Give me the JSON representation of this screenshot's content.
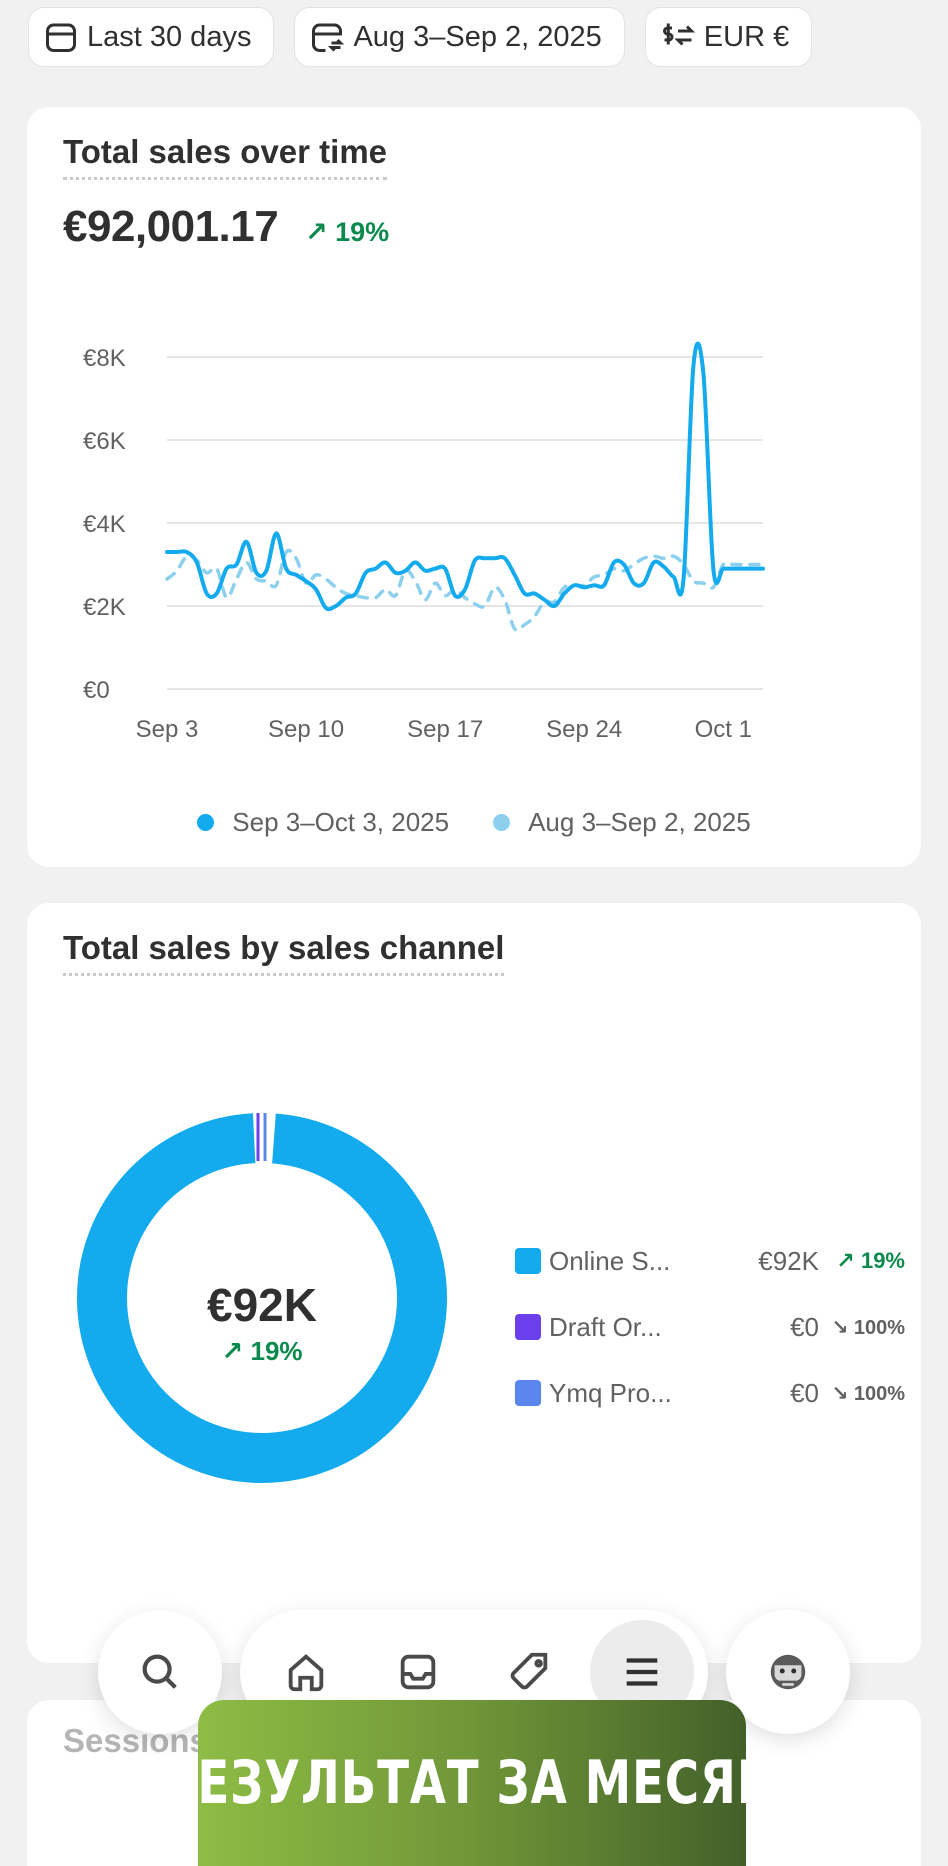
{
  "filters": [
    {
      "label": "Last 30 days",
      "icon": "calendar-icon"
    },
    {
      "label": "Aug 3–Sep 2, 2025",
      "icon": "calendar-compare-icon"
    },
    {
      "label": "EUR €",
      "icon": "currency-exchange-icon"
    }
  ],
  "sales_card": {
    "title": "Total sales over time",
    "total": "€92,001.17",
    "change": "19%"
  },
  "channel_card": {
    "title": "Total sales by sales channel",
    "center_value": "€92K",
    "center_change": "19%",
    "channels": [
      {
        "name": "Online S...",
        "value": "€92K",
        "change": "19%",
        "direction": "up",
        "color": "#13aaee"
      },
      {
        "name": "Draft Or...",
        "value": "€0",
        "change": "100%",
        "direction": "down",
        "color": "#6b40ec"
      },
      {
        "name": "Ymq Pro...",
        "value": "€0",
        "change": "100%",
        "direction": "down",
        "color": "#5b86ee"
      }
    ]
  },
  "sessions_card": {
    "title": "Sessions"
  },
  "banner": {
    "text": "РЕЗУЛЬТАТ ЗА МЕСЯЦ"
  },
  "nav": {
    "items": [
      "search-icon",
      "home-icon",
      "inbox-icon",
      "tag-icon",
      "menu-icon",
      "avatar-icon"
    ],
    "active": "menu-icon"
  },
  "colors": {
    "current": "#13aaee",
    "previous": "#8cd0ee",
    "up": "#0c8a4d"
  },
  "chart_data": {
    "type": "line",
    "title": "Total sales over time",
    "x_ticks": [
      "Sep 3",
      "Sep 10",
      "Sep 17",
      "Sep 24",
      "Oct 1"
    ],
    "x_tick_days": [
      0,
      7,
      14,
      21,
      28
    ],
    "y_ticks": [
      "€0",
      "€2K",
      "€4K",
      "€6K",
      "€8K"
    ],
    "ylim": [
      0,
      8000
    ],
    "grid": true,
    "legend": "bottom-center",
    "series": [
      {
        "name": "Sep 3–Oct 3, 2025",
        "style": "solid",
        "x": [
          0,
          0.5,
          1,
          1.5,
          2,
          2.5,
          3,
          3.5,
          4,
          4.5,
          5,
          5.5,
          6,
          6.5,
          7,
          7.5,
          8,
          8.5,
          9,
          9.5,
          10,
          10.5,
          11,
          11.5,
          12,
          12.5,
          13,
          13.5,
          14,
          14.5,
          15,
          15.5,
          16,
          16.5,
          17,
          17.5,
          18,
          18.5,
          19,
          19.5,
          20,
          20.5,
          21,
          21.5,
          22,
          22.5,
          23,
          23.5,
          24,
          24.5,
          25,
          25.5,
          26,
          26.5,
          27,
          27.5,
          28,
          28.5,
          29,
          29.5,
          30
        ],
        "values": [
          3300,
          3300,
          3300,
          3050,
          2300,
          2300,
          2900,
          3000,
          3550,
          2800,
          2850,
          3750,
          2900,
          2750,
          2600,
          2400,
          1950,
          2000,
          2200,
          2300,
          2800,
          2900,
          3050,
          2800,
          2850,
          3050,
          2850,
          2900,
          2900,
          2250,
          2400,
          3100,
          3150,
          3150,
          3150,
          2750,
          2300,
          2300,
          2150,
          2000,
          2300,
          2500,
          2450,
          2500,
          2500,
          3050,
          3000,
          2550,
          2550,
          3050,
          2950,
          2700,
          2650,
          7800,
          7600,
          2900,
          2900,
          2900,
          2900,
          2900,
          2900
        ]
      },
      {
        "name": "Aug 3–Sep 2, 2025",
        "style": "dashed",
        "x": [
          0,
          0.5,
          1,
          1.5,
          2,
          2.5,
          3,
          3.5,
          4,
          4.5,
          5,
          5.5,
          6,
          6.5,
          7,
          7.5,
          8,
          8.5,
          9,
          9.5,
          10,
          10.5,
          11,
          11.5,
          12,
          12.5,
          13,
          13.5,
          14,
          14.5,
          15,
          15.5,
          16,
          16.5,
          17,
          17.5,
          18,
          18.5,
          19,
          19.5,
          20,
          20.5,
          21,
          21.5,
          22,
          22.5,
          23,
          23.5,
          24,
          24.5,
          25,
          25.5,
          26,
          26.5,
          27,
          27.5,
          28,
          28.5,
          29,
          29.5,
          30
        ],
        "values": [
          2650,
          2850,
          3200,
          3100,
          2800,
          2900,
          2200,
          2650,
          3050,
          2650,
          2600,
          2500,
          3300,
          3150,
          2550,
          2750,
          2650,
          2450,
          2300,
          2250,
          2200,
          2200,
          2400,
          2250,
          2850,
          2600,
          2150,
          2550,
          2250,
          2400,
          2200,
          2050,
          2000,
          2450,
          2150,
          1450,
          1550,
          1750,
          2100,
          2100,
          2450,
          2500,
          2500,
          2700,
          2750,
          2900,
          2850,
          3000,
          3150,
          3200,
          3150,
          3200,
          3000,
          2600,
          2550,
          2450,
          3000,
          3000,
          3000,
          3000,
          3000
        ]
      }
    ]
  }
}
